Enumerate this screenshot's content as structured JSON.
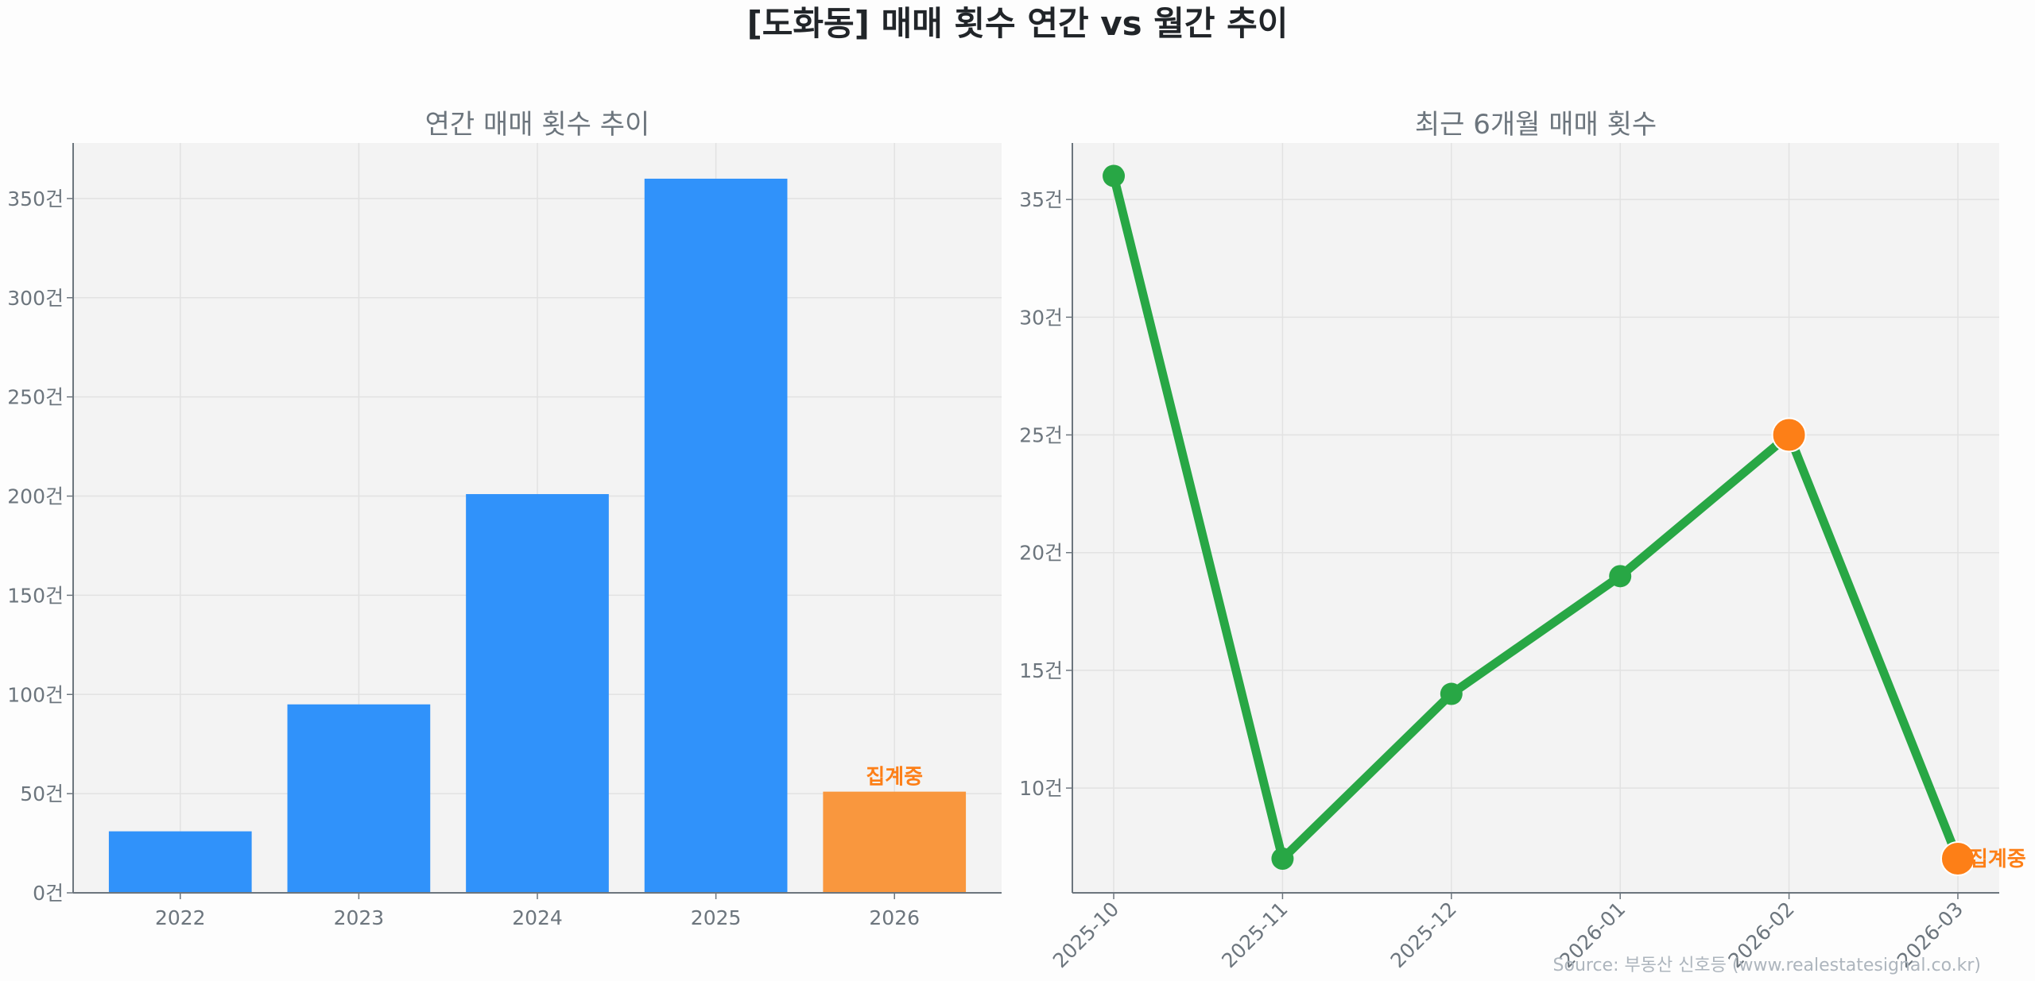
{
  "title": "[도화동] 매매 횟수 연간 vs 월간 추이",
  "source": "Source: 부동산 신호등 (www.realestatesignal.co.kr)",
  "chart_data": [
    {
      "type": "bar",
      "title": "연간 매매 횟수 추이",
      "categories": [
        "2022",
        "2023",
        "2024",
        "2025",
        "2026"
      ],
      "values": [
        31,
        95,
        201,
        360,
        51
      ],
      "ylim": [
        0,
        378
      ],
      "yticks": [
        0,
        50,
        100,
        150,
        200,
        250,
        300,
        350
      ],
      "ytick_suffix": "건",
      "grid": true,
      "colors": [
        "#3092fa",
        "#3092fa",
        "#3092fa",
        "#3092fa",
        "#f9973e"
      ],
      "annotations": [
        {
          "category": "2026",
          "text": "집계중",
          "color": "#fd7f17"
        }
      ]
    },
    {
      "type": "line",
      "title": "최근 6개월 매매 횟수",
      "categories": [
        "2025-10",
        "2025-11",
        "2025-12",
        "2026-01",
        "2026-02",
        "2026-03"
      ],
      "values": [
        36,
        7,
        14,
        19,
        25,
        7
      ],
      "ylim": [
        5.55,
        37.4
      ],
      "yticks": [
        10,
        15,
        20,
        25,
        30,
        35
      ],
      "ytick_suffix": "건",
      "grid": true,
      "line_color": "#28a745",
      "highlight_color": "#fd7f17",
      "highlighted_points": [
        "2026-02",
        "2026-03"
      ],
      "annotations": [
        {
          "category": "2026-03",
          "text": "집계중",
          "color": "#fd7f17"
        }
      ]
    }
  ]
}
